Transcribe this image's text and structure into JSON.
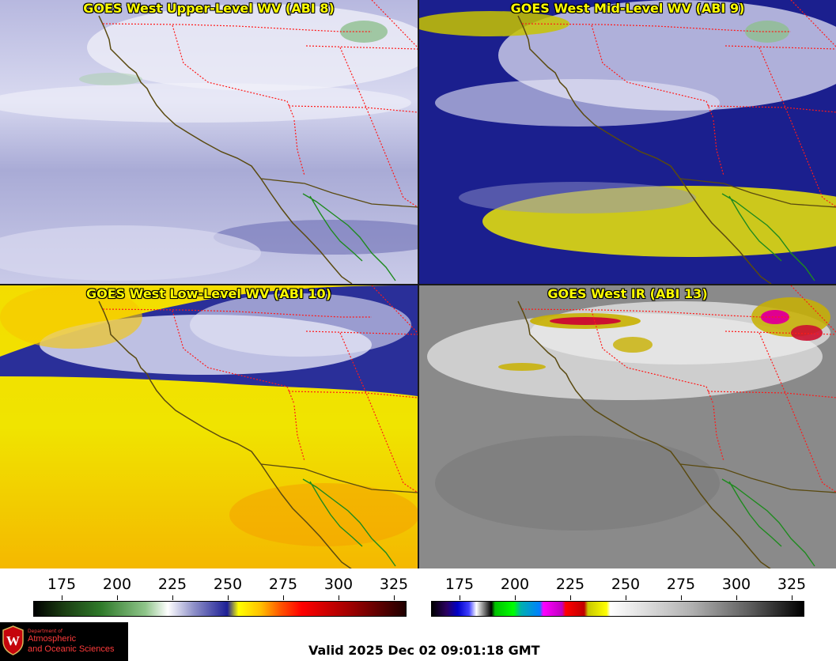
{
  "panels": [
    {
      "title": "GOES West Upper-Level WV (ABI 8)",
      "palette": "wv",
      "channel": "ABI 8"
    },
    {
      "title": "GOES West Mid-Level WV (ABI 9)",
      "palette": "wv",
      "channel": "ABI 9"
    },
    {
      "title": "GOES West Low-Level WV (ABI 10)",
      "palette": "wv",
      "channel": "ABI 10"
    },
    {
      "title": "GOES West IR (ABI 13)",
      "palette": "ir",
      "channel": "ABI 13"
    }
  ],
  "colorbars": [
    {
      "name": "water-vapor-colorbar",
      "ticks": [
        "175",
        "200",
        "225",
        "250",
        "275",
        "300",
        "325"
      ]
    },
    {
      "name": "infrared-colorbar",
      "ticks": [
        "175",
        "200",
        "225",
        "250",
        "275",
        "300",
        "325"
      ]
    }
  ],
  "colors": {
    "coastline": "#5a4a10",
    "state_borders": "#ff1a1a",
    "mexico_coast": "#1e8a1e",
    "title_text": "#ffff00"
  },
  "logo": {
    "dept": "Department of",
    "line1": "Atmospheric",
    "line2": "and Oceanic Sciences",
    "crest_letter": "W"
  },
  "valid_time": "Valid 2025 Dec 02 09:01:18 GMT"
}
